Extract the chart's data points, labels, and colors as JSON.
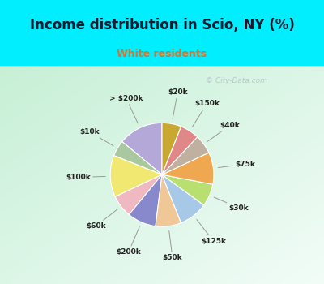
{
  "title": "Income distribution in Scio, NY (%)",
  "subtitle": "White residents",
  "title_color": "#1a1a2e",
  "subtitle_color": "#cc7733",
  "bg_cyan": "#00eeff",
  "labels": [
    "> $200k",
    "$10k",
    "$100k",
    "$60k",
    "$200k",
    "$50k",
    "$125k",
    "$30k",
    "$75k",
    "$40k",
    "$150k",
    "$20k"
  ],
  "values": [
    14,
    5,
    13,
    7,
    9,
    8,
    9,
    7,
    10,
    6,
    6,
    6
  ],
  "colors": [
    "#b3a8d8",
    "#aac8a0",
    "#f0e870",
    "#f0b8c0",
    "#8888cc",
    "#f0c898",
    "#a8c8e8",
    "#b8e070",
    "#f0a850",
    "#c0b0a0",
    "#e08888",
    "#c8a830"
  ],
  "startangle": 90,
  "title_fontsize": 12,
  "subtitle_fontsize": 9,
  "label_fontsize": 6.5
}
